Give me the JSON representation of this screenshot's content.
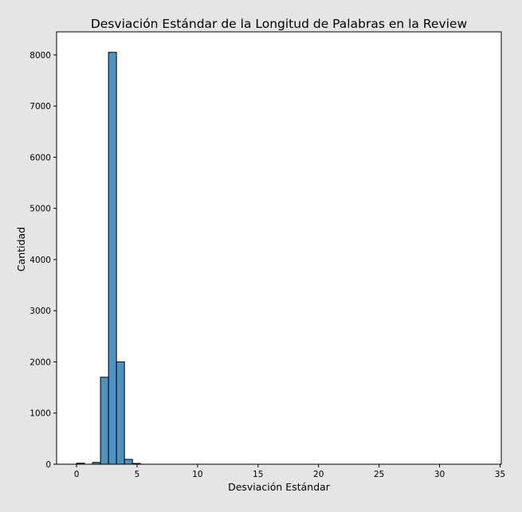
{
  "chart_data": {
    "type": "bar",
    "title": "Desviación Estándar de la Longitud de Palabras en la Review",
    "xlabel": "Desviación Estándar",
    "ylabel": "Cantidad",
    "xlim": [
      -1.65,
      35.1
    ],
    "ylim": [
      0,
      8450
    ],
    "x_ticks": [
      0,
      5,
      10,
      15,
      20,
      25,
      30,
      35
    ],
    "y_ticks": [
      0,
      1000,
      2000,
      3000,
      4000,
      5000,
      6000,
      7000,
      8000
    ],
    "bin_width": 0.66,
    "bins": [
      {
        "start": 0.0,
        "count": 20
      },
      {
        "start": 0.66,
        "count": 0
      },
      {
        "start": 1.32,
        "count": 35
      },
      {
        "start": 1.98,
        "count": 1700
      },
      {
        "start": 2.64,
        "count": 8050
      },
      {
        "start": 3.3,
        "count": 2000
      },
      {
        "start": 3.96,
        "count": 95
      },
      {
        "start": 4.62,
        "count": 15
      }
    ],
    "grid": false,
    "colors": {
      "bar_fill": "#4c92c3",
      "bar_edge": "#000000",
      "background": "#e5e5e5",
      "plot_area": "#ffffff"
    }
  }
}
